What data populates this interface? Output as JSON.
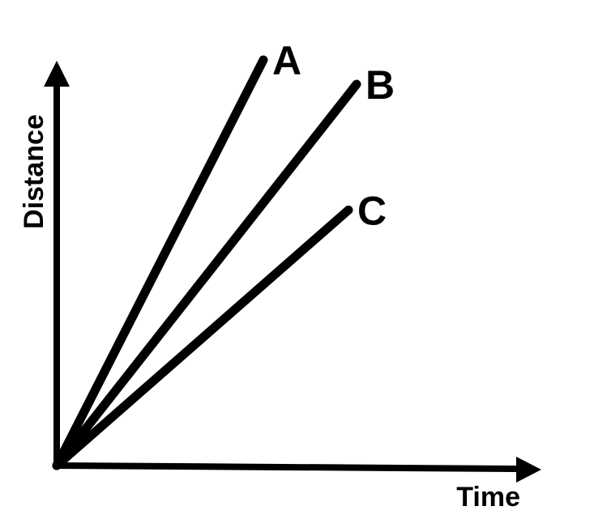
{
  "chart_data": {
    "type": "line",
    "title": "",
    "xlabel": "Time",
    "ylabel": "Distance",
    "xlim": [
      0,
      1
    ],
    "ylim": [
      0,
      1
    ],
    "grid": false,
    "legend": "none",
    "series": [
      {
        "name": "A",
        "x": [
          0,
          0.51
        ],
        "y": [
          0,
          1.0
        ]
      },
      {
        "name": "B",
        "x": [
          0,
          0.74
        ],
        "y": [
          0,
          0.94
        ]
      },
      {
        "name": "C",
        "x": [
          0,
          0.72
        ],
        "y": [
          0,
          0.63
        ]
      }
    ]
  },
  "colors": {
    "line": "#000000",
    "background": "#ffffff"
  }
}
